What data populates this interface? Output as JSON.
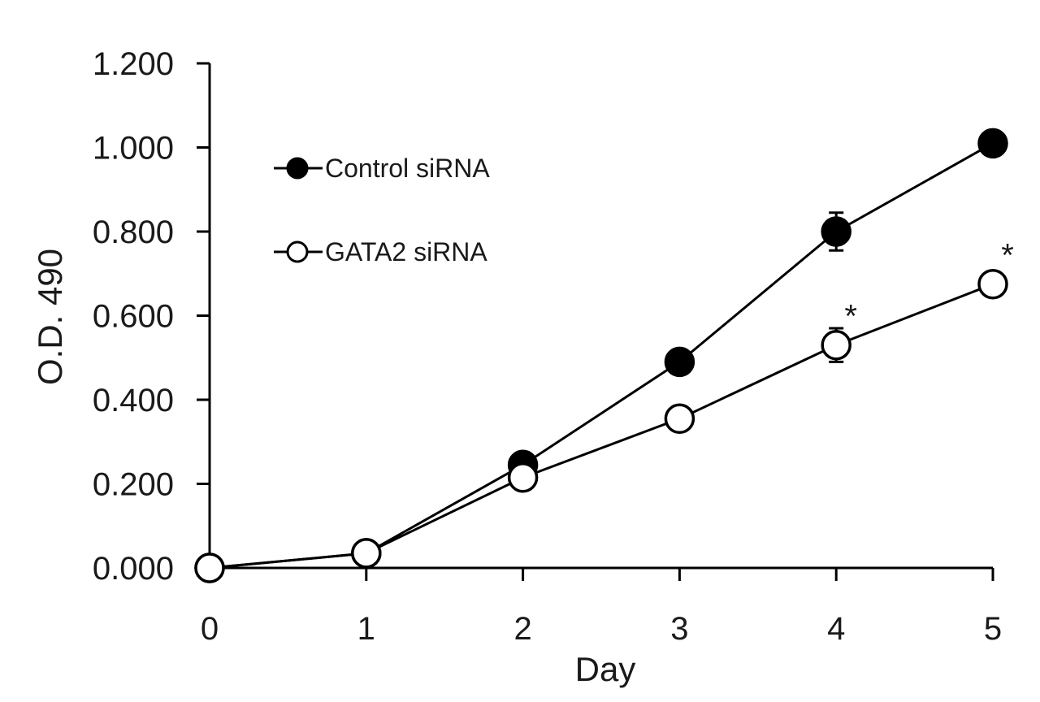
{
  "chart_data": {
    "type": "line",
    "title": "",
    "xlabel": "Day",
    "ylabel": "O.D. 490",
    "x": [
      0,
      1,
      2,
      3,
      4,
      5
    ],
    "x_tick_labels": [
      "0",
      "1",
      "2",
      "3",
      "4",
      "5"
    ],
    "xlim": [
      0,
      5
    ],
    "ylim": [
      0,
      1.2
    ],
    "y_ticks": [
      0,
      0.2,
      0.4,
      0.6,
      0.8,
      1.0,
      1.2
    ],
    "y_tick_labels": [
      "0.000",
      "0.200",
      "0.400",
      "0.600",
      "0.800",
      "1.000",
      "1.200"
    ],
    "grid": false,
    "legend_position": "top-left",
    "series": [
      {
        "name": "Control siRNA",
        "marker": "filled-circle",
        "color": "#000000",
        "values": [
          0.0,
          0.035,
          0.245,
          0.49,
          0.8,
          1.01
        ],
        "errors": [
          0,
          0,
          0,
          0,
          0.045,
          0
        ]
      },
      {
        "name": "GATA2 siRNA",
        "marker": "open-circle",
        "color": "#000000",
        "values": [
          0.0,
          0.035,
          0.215,
          0.355,
          0.53,
          0.675
        ],
        "errors": [
          0,
          0,
          0,
          0,
          0.04,
          0
        ]
      }
    ],
    "annotations": [
      {
        "text": "*",
        "x": 4,
        "y": 0.53,
        "series": "GATA2 siRNA"
      },
      {
        "text": "*",
        "x": 5,
        "y": 0.675,
        "series": "GATA2 siRNA"
      }
    ]
  }
}
